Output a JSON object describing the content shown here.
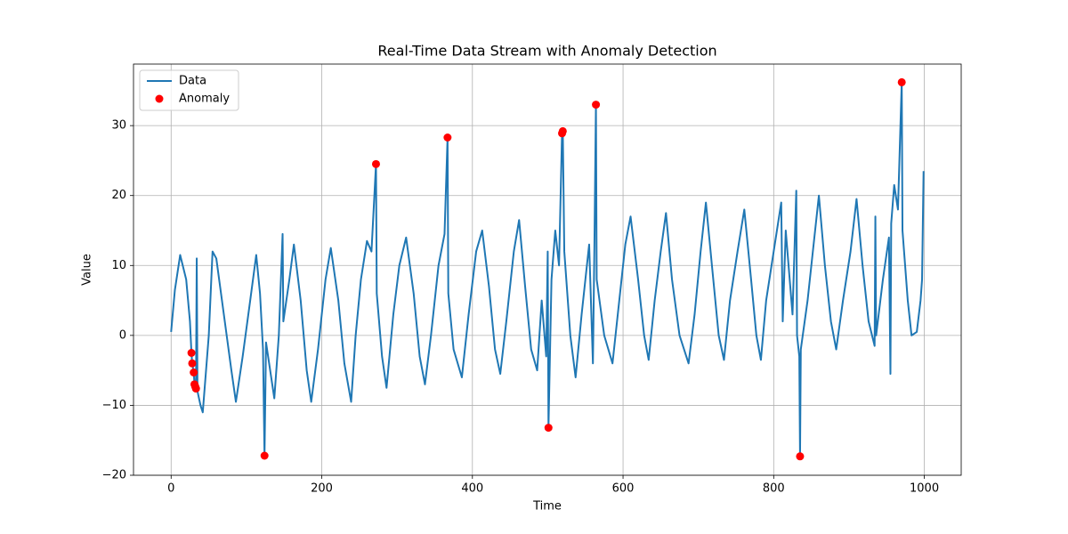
{
  "chart_data": {
    "type": "line",
    "title": "Real-Time Data Stream with Anomaly Detection",
    "xlabel": "Time",
    "ylabel": "Value",
    "xlim": [
      -49.95,
      1048.95
    ],
    "ylim": [
      -20,
      38.8
    ],
    "xticks": [
      0,
      200,
      400,
      600,
      800,
      1000
    ],
    "yticks": [
      {
        "value": -20,
        "label": "−20"
      },
      {
        "value": -10,
        "label": "−10"
      },
      0,
      10,
      20,
      30
    ],
    "grid": true,
    "legend": "upper left",
    "series": [
      {
        "name": "Data",
        "type": "line",
        "color": "#1f77b4",
        "x": [
          0,
          5,
          12,
          20,
          25,
          27,
          28,
          30,
          31,
          32,
          33,
          34,
          35,
          39,
          42,
          50,
          55,
          60,
          70,
          80,
          86,
          95,
          105,
          113,
          118,
          122,
          124,
          126,
          137,
          143,
          148,
          149,
          157,
          163,
          172,
          180,
          186,
          195,
          205,
          212,
          222,
          230,
          239,
          245,
          252,
          260,
          266,
          272,
          273,
          280,
          286,
          295,
          303,
          312,
          322,
          330,
          337,
          345,
          355,
          363,
          367,
          368,
          375,
          386,
          395,
          405,
          413,
          422,
          430,
          437,
          445,
          455,
          462,
          470,
          478,
          486,
          492,
          498,
          500,
          501,
          505,
          510,
          515,
          519,
          520,
          522,
          530,
          537,
          545,
          555,
          560,
          562,
          564,
          565,
          575,
          586,
          595,
          603,
          610,
          620,
          628,
          634,
          642,
          650,
          657,
          665,
          675,
          687,
          695,
          703,
          710,
          718,
          727,
          734,
          742,
          752,
          761,
          770,
          777,
          783,
          790,
          800,
          810,
          812,
          816,
          825,
          830,
          831,
          834,
          835,
          836,
          845,
          852,
          860,
          868,
          876,
          883,
          892,
          902,
          910,
          918,
          926,
          934,
          935,
          936,
          945,
          953,
          955,
          956,
          960,
          965,
          970,
          971,
          978,
          983,
          990,
          995,
          997,
          999
        ],
        "values": [
          0.5,
          6.5,
          11.5,
          8,
          2,
          -2.5,
          -4,
          -5.3,
          -7,
          -7.3,
          -7.6,
          11,
          -8,
          -10,
          -11,
          0,
          12,
          11,
          3,
          -5,
          -9.5,
          -3,
          5,
          11.5,
          6,
          -2,
          -17.2,
          -1,
          -9,
          0,
          14.5,
          2,
          8,
          13,
          5,
          -5,
          -9.5,
          -2,
          8,
          12.5,
          5,
          -4,
          -9.5,
          0,
          8,
          13.5,
          12,
          24.5,
          6,
          -3,
          -7.5,
          3,
          10,
          14,
          6,
          -3,
          -7,
          0,
          10,
          14.5,
          28.3,
          6,
          -2,
          -6,
          3,
          12,
          15,
          7,
          -2,
          -5.5,
          2,
          12,
          16.5,
          7,
          -2,
          -5,
          5,
          -3,
          12,
          -13.2,
          8,
          15,
          10,
          28.9,
          29.2,
          12,
          0,
          -6,
          3,
          13,
          -4,
          13,
          33,
          8,
          0,
          -4,
          5,
          13,
          17,
          8,
          0,
          -3.5,
          5,
          12,
          17.5,
          8,
          0,
          -4,
          3,
          12,
          19,
          10,
          0,
          -3.5,
          5,
          12,
          18,
          8,
          0,
          -3.5,
          5,
          12,
          19,
          2,
          15,
          3,
          20.7,
          0,
          -3,
          -17.3,
          -2,
          5,
          12,
          20,
          10,
          2,
          -2,
          5,
          12,
          19.5,
          10,
          2,
          -1.5,
          17,
          0,
          8,
          14,
          -5.5,
          16,
          21.5,
          18,
          36.2,
          15,
          5,
          0,
          0.5,
          5,
          8,
          23.5
        ]
      },
      {
        "name": "Anomaly",
        "type": "scatter",
        "color": "#ff0000",
        "x": [
          27,
          28,
          30,
          31,
          32,
          33,
          124,
          272,
          367,
          501,
          519,
          520,
          564,
          835,
          970
        ],
        "values": [
          -2.5,
          -4,
          -5.3,
          -7,
          -7.3,
          -7.6,
          -17.2,
          24.5,
          28.3,
          -13.2,
          28.9,
          29.2,
          33,
          -17.3,
          36.2
        ]
      }
    ]
  }
}
